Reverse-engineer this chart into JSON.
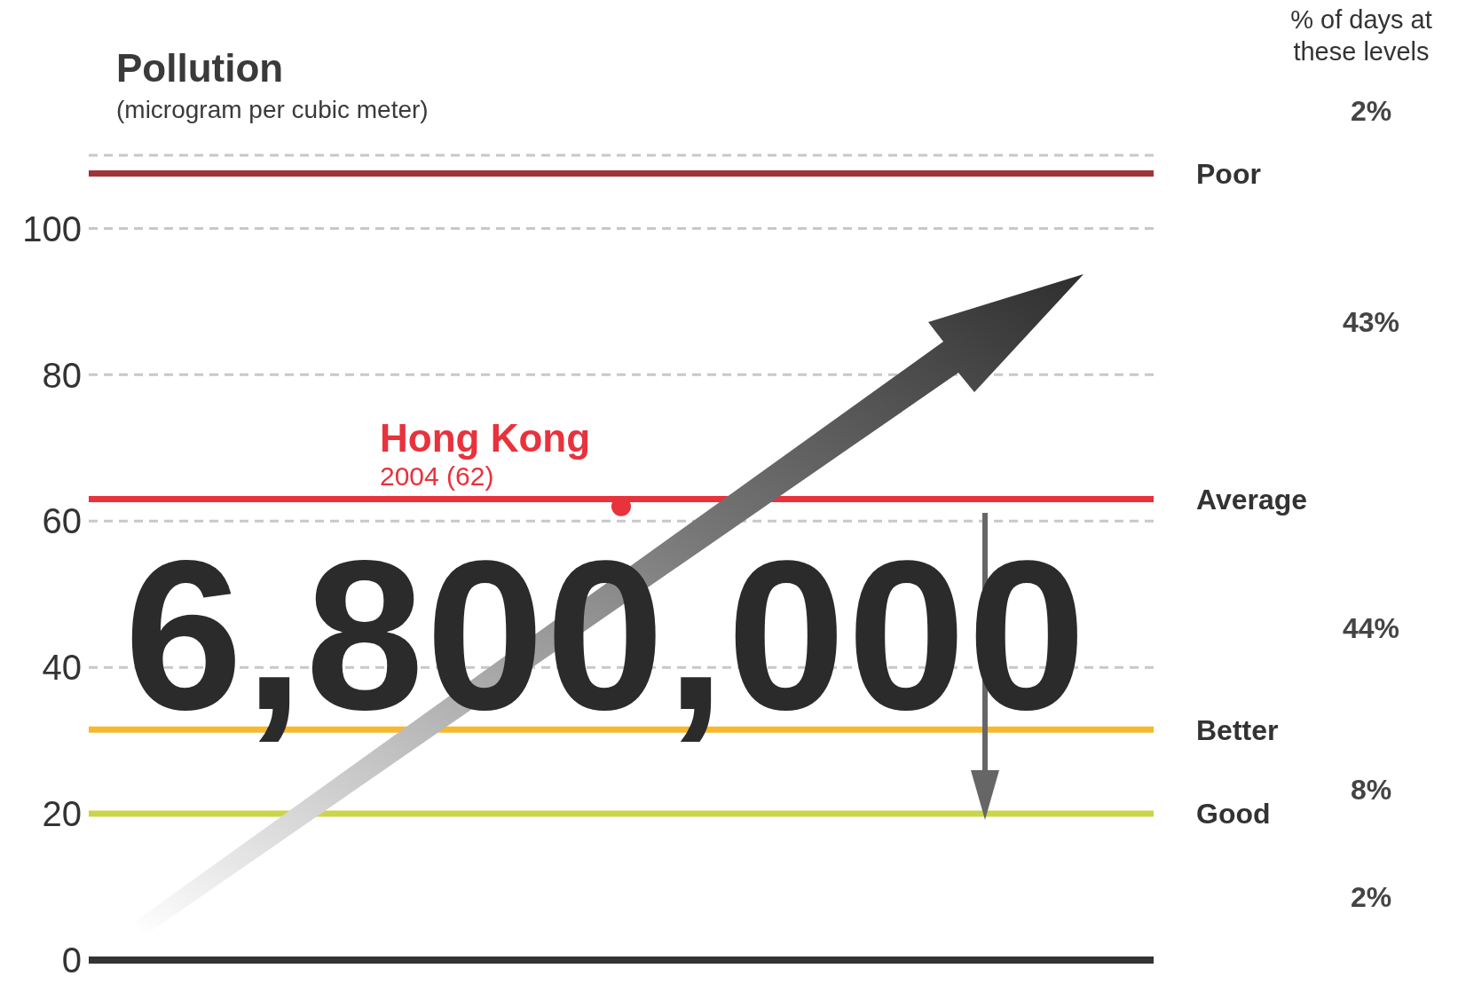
{
  "chart_data": {
    "type": "scatter",
    "title": "Pollution",
    "subtitle": "(microgram per cubic meter)",
    "categories": [
      null
    ],
    "series": [
      {
        "name": "Hong Kong",
        "color": "#e8323c",
        "values": [
          62
        ]
      }
    ],
    "ylim": [
      0,
      110
    ],
    "yticks": [
      0,
      20,
      40,
      60,
      80,
      100
    ],
    "grid": "y",
    "legend": false,
    "ref_lines": [
      {
        "axis": "y",
        "value": 107.5,
        "label": "Poor",
        "color": "#a0343b"
      },
      {
        "axis": "y",
        "value": 63,
        "label": "Average",
        "color": "#e8323c"
      },
      {
        "axis": "y",
        "value": 31.5,
        "label": "Better",
        "color": "#f6b82c"
      },
      {
        "axis": "y",
        "value": 20,
        "label": "Good",
        "color": "#c9d64b"
      }
    ],
    "annotations": [
      {
        "text": "2004 (62)",
        "y": 62
      },
      "6,800,000",
      "% of days at these levels",
      "2%",
      "43%",
      "44%",
      "8%",
      "2%"
    ]
  }
}
